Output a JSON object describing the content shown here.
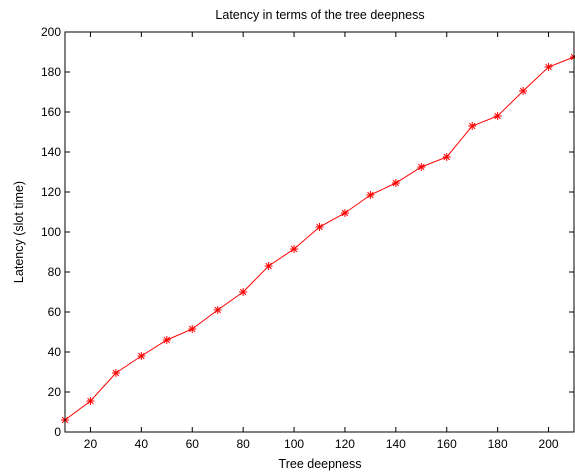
{
  "chart_data": {
    "type": "line",
    "title": "Latency in terms of the tree deepness",
    "xlabel": "Tree deepness",
    "ylabel": "Latency (slot time)",
    "xlim": [
      10,
      210
    ],
    "ylim": [
      0,
      200
    ],
    "xticks": [
      20,
      40,
      60,
      80,
      100,
      120,
      140,
      160,
      180,
      200
    ],
    "yticks": [
      0,
      20,
      40,
      60,
      80,
      100,
      120,
      140,
      160,
      180,
      200
    ],
    "grid": false,
    "series": [
      {
        "color": "#ff0000",
        "marker": "asterisk",
        "x": [
          10,
          20,
          30,
          40,
          50,
          60,
          70,
          80,
          90,
          100,
          110,
          120,
          130,
          140,
          150,
          160,
          170,
          180,
          190,
          200,
          210
        ],
        "y": [
          6,
          15.5,
          29.5,
          38,
          46,
          51.5,
          61,
          70,
          83,
          91.5,
          102.5,
          109.5,
          118.5,
          124.5,
          132.5,
          137.5,
          153,
          158,
          170.5,
          182.5,
          187.5
        ]
      }
    ]
  }
}
